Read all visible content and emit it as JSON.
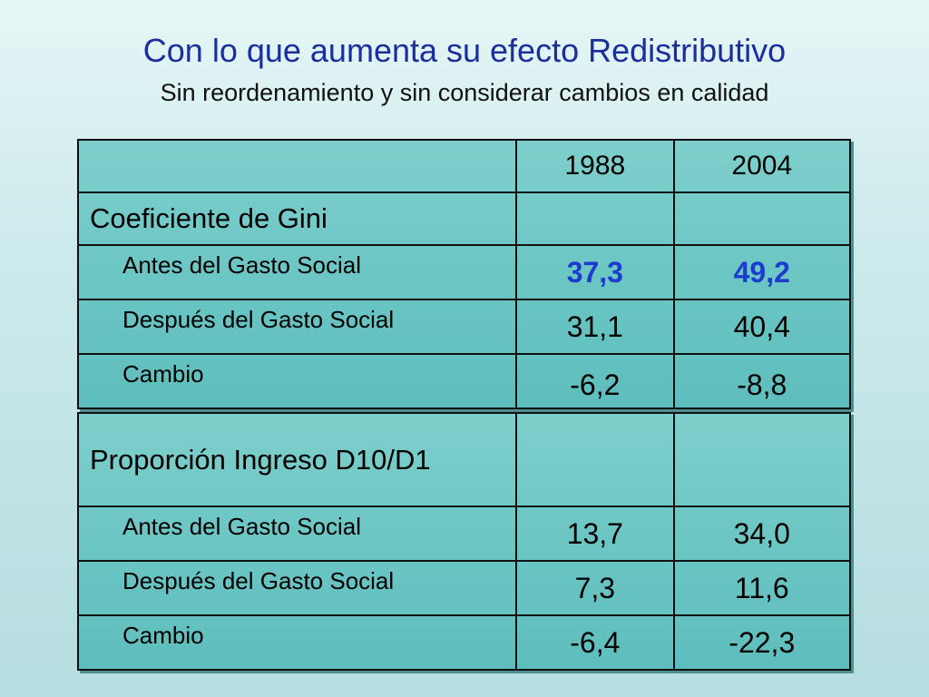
{
  "title": "Con lo que aumenta su efecto Redistributivo",
  "subtitle": "Sin reordenamiento y sin considerar cambios en calidad",
  "table": {
    "years": [
      "1988",
      "2004"
    ],
    "gini": {
      "label": "Coeficiente de Gini",
      "rows": [
        {
          "label": "Antes del Gasto Social",
          "v1988": "37,3",
          "v2004": "49,2"
        },
        {
          "label": "Después del Gasto Social",
          "v1988": "31,1",
          "v2004": "40,4"
        },
        {
          "label": "Cambio",
          "v1988": "-6,2",
          "v2004": "-8,8"
        }
      ]
    },
    "ratio": {
      "label": "Proporción Ingreso D10/D1",
      "rows": [
        {
          "label": "Antes del Gasto Social",
          "v1988": "13,7",
          "v2004": "34,0"
        },
        {
          "label": "Después del Gasto Social",
          "v1988": "7,3",
          "v2004": "11,6"
        },
        {
          "label": "Cambio",
          "v1988": "-6,4",
          "v2004": "-22,3"
        }
      ]
    }
  },
  "colors": {
    "title": "#1a2f9c",
    "highlight": "#1b3ccf",
    "cell": "#6cc6c4"
  }
}
